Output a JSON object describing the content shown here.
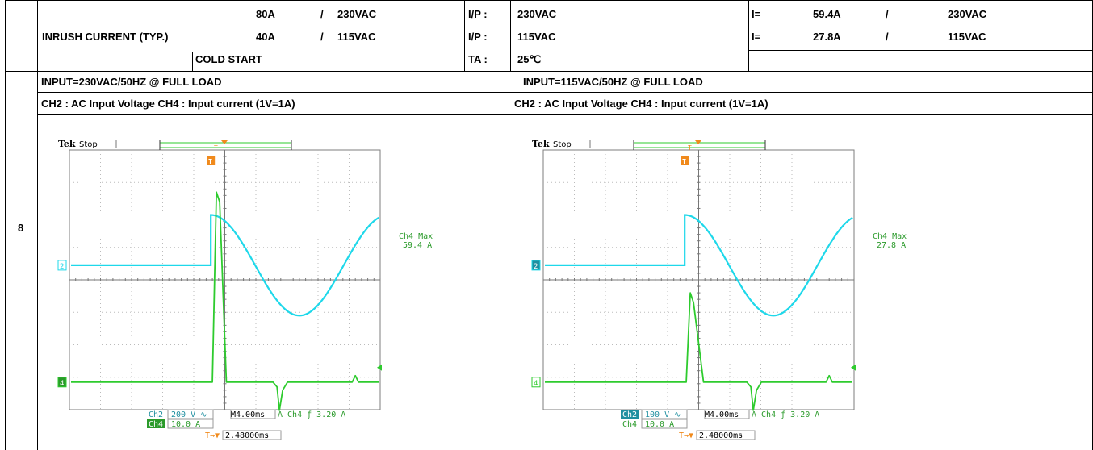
{
  "table": {
    "row_number": "8",
    "spec_label": "INRUSH CURRENT (TYP.)",
    "spec_values": [
      {
        "current": "80A",
        "sep": "/",
        "voltage": "230VAC"
      },
      {
        "current": "40A",
        "sep": "/",
        "voltage": "115VAC"
      }
    ],
    "cold_start": "COLD START",
    "conditions": [
      {
        "label": "I/P :",
        "value": "230VAC"
      },
      {
        "label": "I/P :",
        "value": "115VAC"
      },
      {
        "label": "TA :",
        "value": "25℃"
      }
    ],
    "results": [
      {
        "label": "I=",
        "current": "59.4A",
        "sep": "/",
        "voltage": "230VAC"
      },
      {
        "label": "I=",
        "current": "27.8A",
        "sep": "/",
        "voltage": "115VAC"
      }
    ],
    "input_left": "INPUT=230VAC/50HZ @ FULL LOAD",
    "input_right": "INPUT=115VAC/50HZ @ FULL LOAD",
    "channel_left": "CH2 : AC Input Voltage  CH4 : Input current (1V=1A)",
    "channel_right": "CH2 : AC Input Voltage  CH4 : Input current (1V=1A)"
  },
  "scopes": [
    {
      "brand": "Tek",
      "state": "Stop",
      "trigger_marker": "T",
      "ch2_marker": "2",
      "ch4_marker": "4",
      "meas_label": "Ch4 Max",
      "meas_value": "59.4 A",
      "ch2_name": "Ch2",
      "ch2_scale": "200 V ∿",
      "ch4_name": "Ch4",
      "ch4_scale": "10.0 A",
      "timebase": "M4.00ms",
      "trigger_info": "A  Ch4 ƒ   3.20 A",
      "trigger_pos_icon": "T→▼",
      "trigger_pos": "2.48000ms",
      "peak_current_fraction": 1.0,
      "colors": {
        "ch2": "#1ed8ea",
        "ch4": "#2ecb2e",
        "trigger": "#f08a1c"
      }
    },
    {
      "brand": "Tek",
      "state": "Stop",
      "trigger_marker": "T",
      "ch2_marker": "2",
      "ch4_marker": "4",
      "meas_label": "Ch4 Max",
      "meas_value": "27.8 A",
      "ch2_name": "Ch2",
      "ch2_scale": "100 V ∿",
      "ch4_name": "Ch4",
      "ch4_scale": "10.0 A",
      "timebase": "M4.00ms",
      "trigger_info": "A  Ch4 ƒ   3.20 A",
      "trigger_pos_icon": "T→▼",
      "trigger_pos": "2.48000ms",
      "peak_current_fraction": 0.47,
      "colors": {
        "ch2": "#1ed8ea",
        "ch4": "#2ecb2e",
        "trigger": "#f08a1c"
      }
    }
  ]
}
